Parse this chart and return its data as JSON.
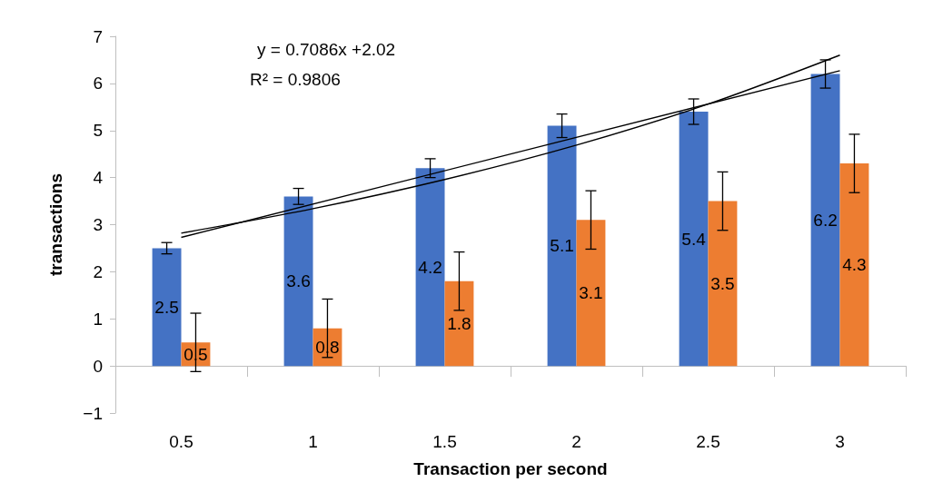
{
  "chart_data": {
    "type": "bar",
    "xlabel": "Transaction per second",
    "ylabel": "transactions",
    "categories": [
      "0.5",
      "1",
      "1.5",
      "2",
      "2.5",
      "3"
    ],
    "series": [
      {
        "color": "#4472c4",
        "values": [
          2.5,
          3.6,
          4.2,
          5.1,
          5.4,
          6.2
        ],
        "value_labels": [
          "2.5",
          "3.6",
          "4.2",
          "5.1",
          "5.4",
          "6.2"
        ],
        "errors": [
          0.12,
          0.17,
          0.2,
          0.25,
          0.27,
          0.3
        ]
      },
      {
        "color": "#ed7d31",
        "values": [
          0.5,
          0.8,
          1.8,
          3.1,
          3.5,
          4.3
        ],
        "value_labels": [
          "0.5",
          "0.8",
          "1.8",
          "3.1",
          "3.5",
          "4.3"
        ],
        "errors": [
          0.62,
          0.62,
          0.62,
          0.62,
          0.62,
          0.62
        ]
      },
      {
        "type": "line",
        "color": "#000000",
        "x": [
          "0.5",
          "3"
        ],
        "values": [
          2.73,
          6.27
        ]
      },
      {
        "type": "line",
        "color": "#000000",
        "x": [
          "0.5",
          "1",
          "1.5",
          "2",
          "2.5",
          "3"
        ],
        "values": [
          2.82,
          3.34,
          3.96,
          4.69,
          5.56,
          6.6
        ]
      }
    ],
    "ylim": [
      -1,
      7
    ],
    "yticks": [
      {
        "value": -1,
        "label": "−1"
      },
      0,
      1,
      2,
      3,
      4,
      5,
      6,
      7
    ],
    "annotations": [
      "y = 0.7086x +2.02",
      "R² = 0.9806"
    ],
    "marker": "none"
  }
}
